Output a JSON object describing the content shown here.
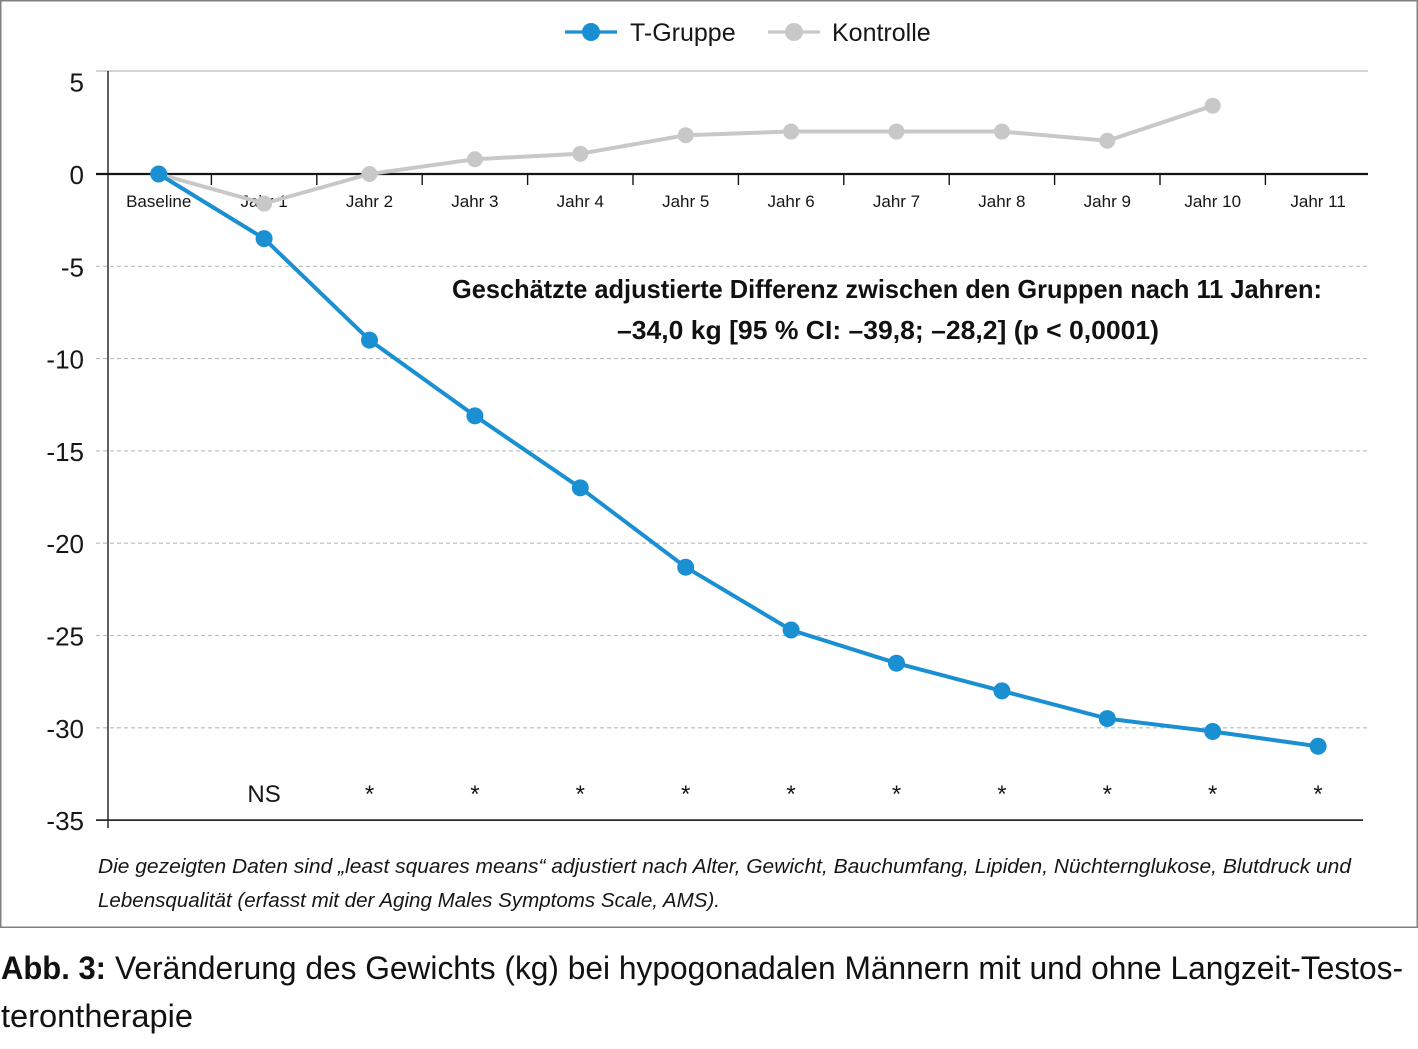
{
  "chart_data": {
    "type": "line",
    "categories": [
      "Baseline",
      "Jahr 1",
      "Jahr 2",
      "Jahr 3",
      "Jahr 4",
      "Jahr 5",
      "Jahr 6",
      "Jahr 7",
      "Jahr 8",
      "Jahr 9",
      "Jahr 10",
      "Jahr 11"
    ],
    "series": [
      {
        "name": "T-Gruppe",
        "color": "#1a8fd2",
        "values": [
          0,
          -3.5,
          -9.0,
          -13.1,
          -17.0,
          -21.3,
          -24.7,
          -26.5,
          -28.0,
          -29.5,
          -30.2,
          -31.0
        ]
      },
      {
        "name": "Kontrolle",
        "color": "#c8c8c8",
        "values": [
          0,
          -1.6,
          0.0,
          0.8,
          1.1,
          2.1,
          2.3,
          2.3,
          2.3,
          1.8,
          3.7,
          null
        ]
      }
    ],
    "ylim": [
      -35,
      5
    ],
    "yticks": [
      5,
      0,
      -5,
      -10,
      -15,
      -20,
      -25,
      -30,
      -35
    ],
    "grid": true,
    "legend": "top-center",
    "significance": [
      null,
      "NS",
      "*",
      "*",
      "*",
      "*",
      "*",
      "*",
      "*",
      "*",
      "*",
      "*"
    ],
    "annotation": [
      "Geschätzte adjustierte Differenz zwischen den Gruppen nach 11 Jahren:",
      "–34,0 kg [95 % CI: –39,8; –28,2] (p < 0,0001)"
    ]
  },
  "footnote": {
    "lines": [
      "Die gezeigten Daten sind „least squares means“ adjustiert nach Alter, Gewicht, Bauchumfang, Lipiden, Nüchternglukose, Blutdruck und",
      "Lebensqualität (erfasst mit der Aging Males Symptoms Scale, AMS)."
    ]
  },
  "caption": {
    "label": "Abb. 3:",
    "lines": [
      "Veränderung des Gewichts (kg) bei hypogonadalen Männern mit und ohne Langzeit-Testos-",
      "terontherapie"
    ]
  }
}
